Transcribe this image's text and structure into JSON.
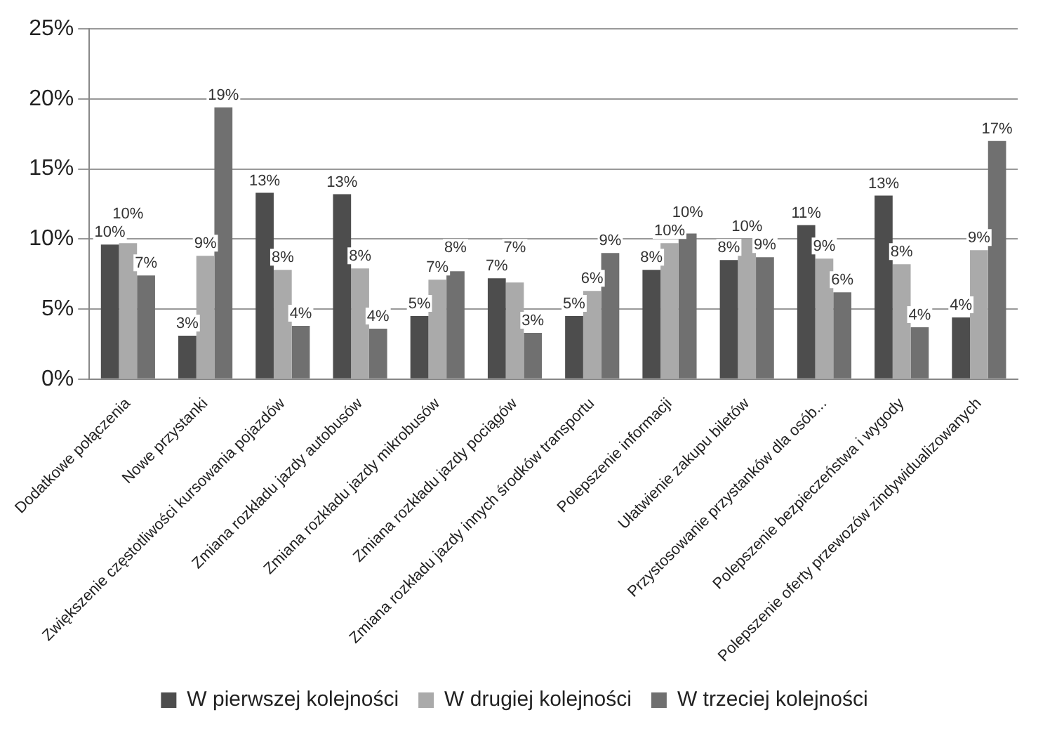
{
  "chart_data": {
    "type": "bar",
    "categories": [
      "Dodatkowe połączenia",
      "Nowe przystanki",
      "Zwiększenie częstotliwości kursowania pojazdów",
      "Zmiana rozkładu jazdy autobusów",
      "Zmiana rozkładu jazdy mikrobusów",
      "Zmiana rozkładu jazdy pociągów",
      "Zmiana rozkładu jazdy innych środków transportu",
      "Polepszenie informacji",
      "Ułatwienie zakupu biletów",
      "Przystosowanie przystanków dla osób...",
      "Polepszenie bezpieczeństwa i wygody",
      "Polepszenie oferty przewozów zindywidualizowanych"
    ],
    "series": [
      {
        "name": "W pierwszej kolejności",
        "color": "#4d4d4d",
        "values": [
          9.6,
          3.1,
          13.3,
          13.2,
          4.5,
          7.2,
          4.5,
          7.8,
          8.5,
          11.0,
          13.1,
          4.4
        ],
        "value_labels": [
          "10%",
          "3%",
          "13%",
          "13%",
          "5%",
          "7%",
          "5%",
          "8%",
          "8%",
          "11%",
          "13%",
          "4%"
        ]
      },
      {
        "name": "W drugiej kolejności",
        "color": "#aaaaaa",
        "values": [
          9.7,
          8.8,
          7.8,
          7.9,
          7.1,
          6.9,
          6.3,
          9.7,
          10.0,
          8.6,
          8.2,
          9.2
        ],
        "value_labels": [
          "10%",
          "9%",
          "8%",
          "8%",
          "7%",
          "7%",
          "6%",
          "10%",
          "10%",
          "9%",
          "8%",
          "9%"
        ]
      },
      {
        "name": "W trzeciej kolejności",
        "color": "#707070",
        "values": [
          7.4,
          19.4,
          3.8,
          3.6,
          7.7,
          3.3,
          9.0,
          10.4,
          8.7,
          6.2,
          3.7,
          17.0
        ],
        "value_labels": [
          "7%",
          "19%",
          "4%",
          "4%",
          "8%",
          "3%",
          "9%",
          "10%",
          "9%",
          "6%",
          "4%",
          "17%"
        ]
      }
    ],
    "ylim": [
      0,
      25
    ],
    "yticks": [
      {
        "value": 0,
        "label": "0%"
      },
      {
        "value": 5,
        "label": "5%"
      },
      {
        "value": 10,
        "label": "10%"
      },
      {
        "value": 15,
        "label": "15%"
      },
      {
        "value": 20,
        "label": "20%"
      },
      {
        "value": 25,
        "label": "25%"
      }
    ],
    "grid": "y",
    "legend": "bottom"
  }
}
